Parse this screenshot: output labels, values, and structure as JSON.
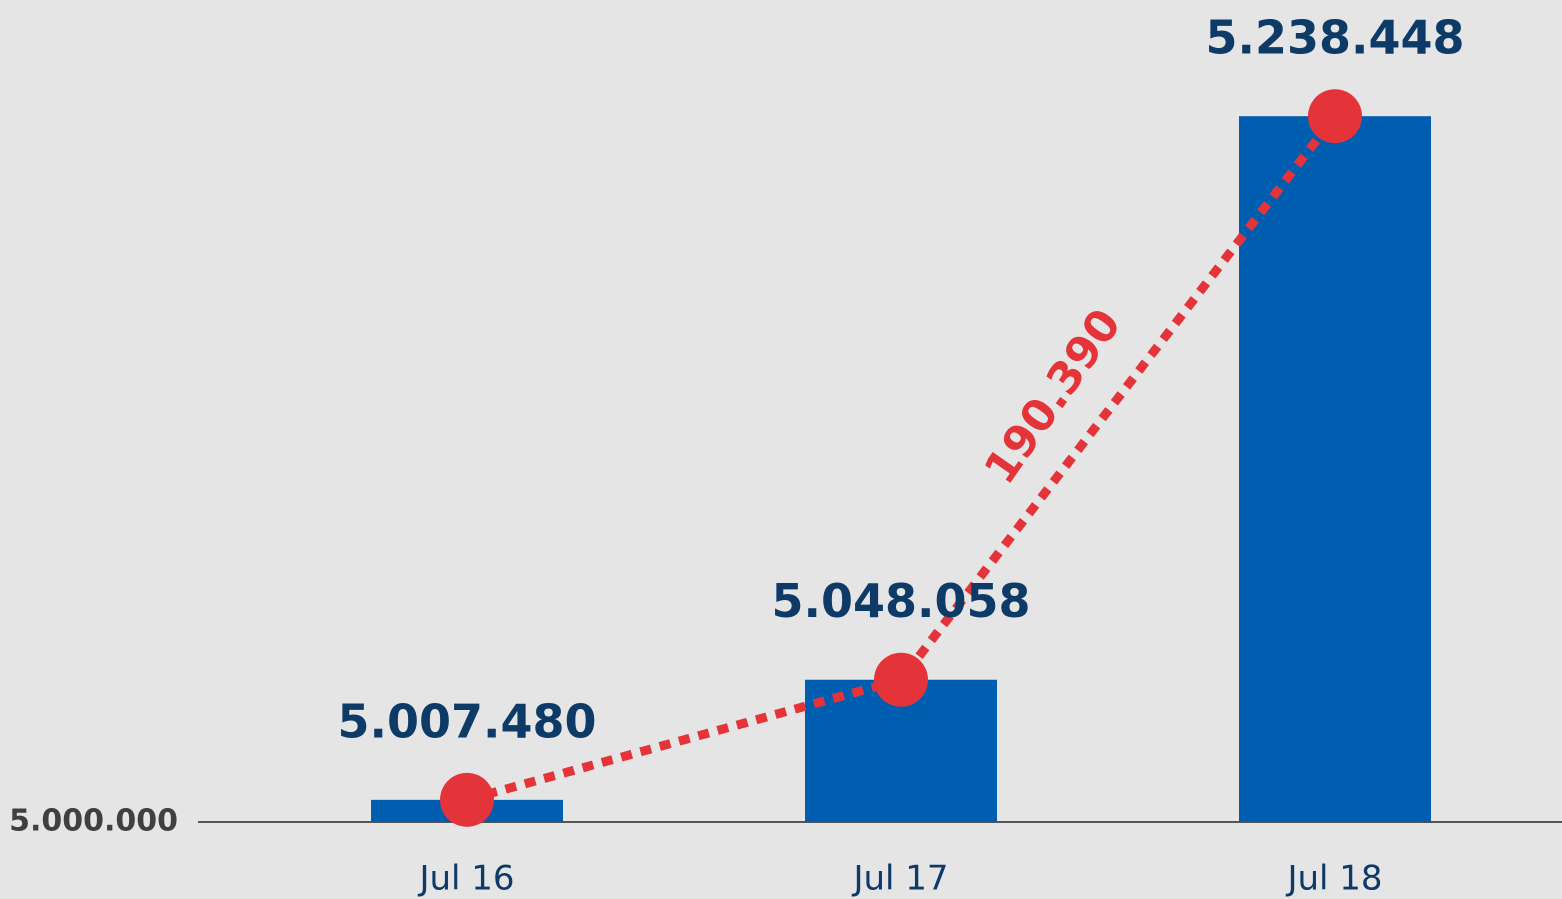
{
  "chart_data": {
    "type": "bar",
    "categories": [
      "Jul 16",
      "Jul 17",
      "Jul 18"
    ],
    "values": [
      5007480,
      5048058,
      5238448
    ],
    "value_labels": [
      "5.007.480",
      "5.048.058",
      "5.238.448"
    ],
    "color": "#005eb0",
    "line_overlay": true,
    "line_color": "#e4343a",
    "annotation": "190.390",
    "ylim": [
      5000000,
      5250000
    ],
    "yticks": [
      {
        "value": 5000000,
        "label": "5.000.000"
      }
    ]
  }
}
